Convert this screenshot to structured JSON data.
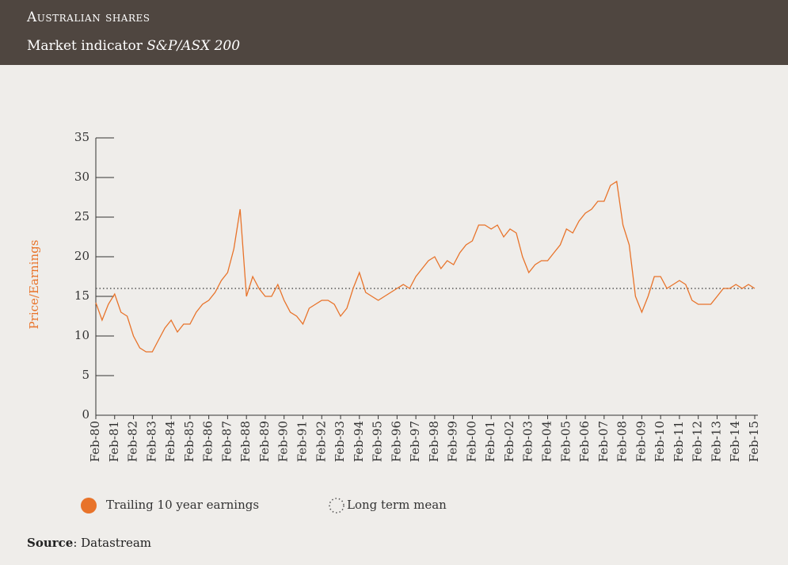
{
  "header": {
    "title": "Australian shares",
    "subtitle": "Market indicator",
    "subtitle_italic": "S&P/ASX 200"
  },
  "chart_data": {
    "type": "line",
    "ylabel": "Price/Earnings",
    "categories": [
      "Feb-80",
      null,
      null,
      "Feb-81",
      null,
      null,
      "Feb-82",
      null,
      null,
      "Feb-83",
      null,
      null,
      "Feb-84",
      null,
      null,
      "Feb-85",
      null,
      null,
      "Feb-86",
      null,
      null,
      "Feb-87",
      null,
      null,
      "Feb-88",
      null,
      null,
      "Feb-89",
      null,
      null,
      "Feb-90",
      null,
      null,
      "Feb-91",
      null,
      null,
      "Feb-92",
      null,
      null,
      "Feb-93",
      null,
      null,
      "Feb-94",
      null,
      null,
      "Feb-95",
      null,
      null,
      "Feb-96",
      null,
      null,
      "Feb-97",
      null,
      null,
      "Feb-98",
      null,
      null,
      "Feb-99",
      null,
      null,
      "Feb-00",
      null,
      null,
      "Feb-01",
      null,
      null,
      "Feb-02",
      null,
      null,
      "Feb-03",
      null,
      null,
      "Feb-04",
      null,
      null,
      "Feb-05",
      null,
      null,
      "Feb-06",
      null,
      null,
      "Feb-07",
      null,
      null,
      "Feb-08",
      null,
      null,
      "Feb-09",
      null,
      null,
      "Feb-10",
      null,
      null,
      "Feb-11",
      null,
      null,
      "Feb-12",
      null,
      null,
      "Feb-13",
      null,
      null,
      "Feb-14",
      null,
      null,
      "Feb-15"
    ],
    "series": [
      {
        "name": "Trailing 10 year earnings",
        "color": "#e8732a",
        "values": [
          14.2,
          12,
          14,
          15.3,
          13,
          12.5,
          10,
          8.5,
          8,
          8,
          9.5,
          11,
          12,
          10.5,
          11.5,
          11.5,
          13,
          14,
          14.5,
          15.5,
          17,
          18,
          21,
          26,
          15,
          17.5,
          16,
          15,
          15,
          16.5,
          14.5,
          13,
          12.5,
          11.5,
          13.5,
          14,
          14.5,
          14.5,
          14,
          12.5,
          13.5,
          16,
          18,
          15.5,
          15,
          14.5,
          15,
          15.5,
          16,
          16.5,
          16,
          17.5,
          18.5,
          19.5,
          20,
          18.5,
          19.5,
          19,
          20.5,
          21.5,
          22,
          24,
          24,
          23.5,
          24,
          22.5,
          23.5,
          23,
          20,
          18,
          19,
          19.5,
          19.5,
          20.5,
          21.5,
          23.5,
          23,
          24.5,
          25.5,
          26,
          27,
          27,
          29,
          29.5,
          24,
          21.5,
          15,
          13,
          15,
          17.5,
          17.5,
          16,
          16.5,
          17,
          16.5,
          14.5,
          14,
          14,
          14,
          15,
          16,
          16,
          16.5,
          16,
          16.5,
          16
        ]
      }
    ],
    "mean": {
      "name": "Long term mean",
      "value": 16,
      "color": "#555555"
    },
    "ylim": [
      0,
      35
    ],
    "yticks": [
      0,
      5,
      10,
      15,
      20,
      25,
      30,
      35
    ]
  },
  "footer": {
    "source_label": "Source",
    "source": ": Datastream"
  }
}
